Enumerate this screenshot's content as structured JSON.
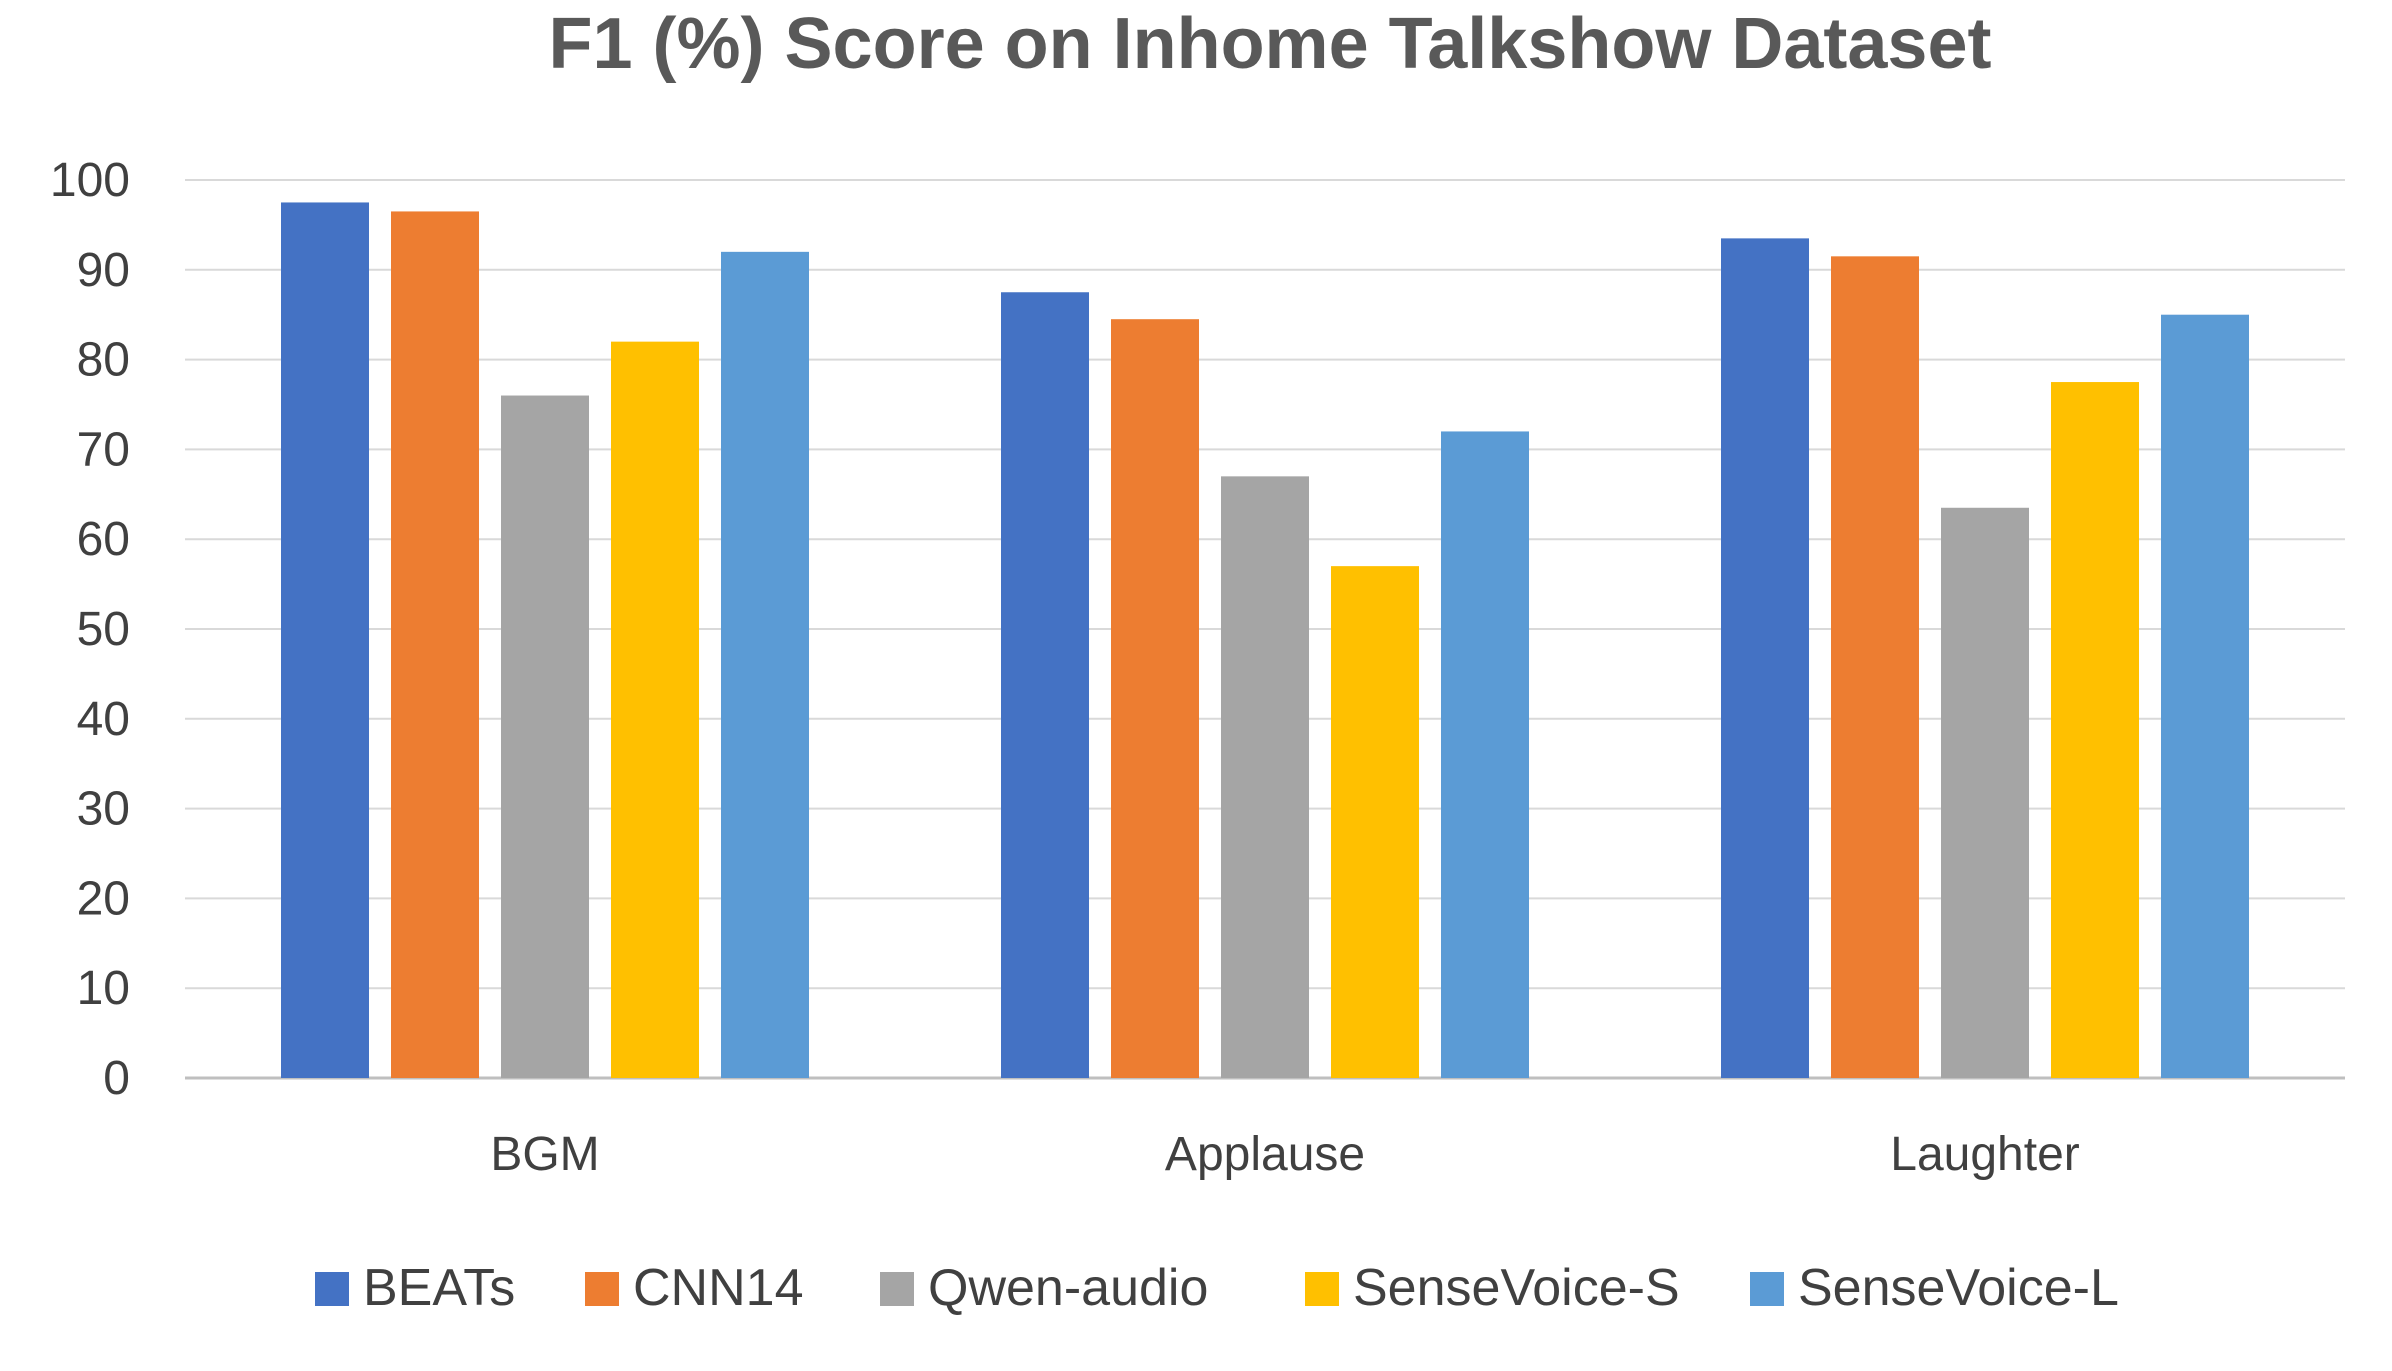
{
  "chart_data": {
    "type": "bar",
    "title": "F1 (%) Score on Inhome Talkshow Dataset",
    "xlabel": "",
    "ylabel": "",
    "categories": [
      "BGM",
      "Applause",
      "Laughter"
    ],
    "ylim": [
      0,
      100
    ],
    "yticks": [
      0,
      10,
      20,
      30,
      40,
      50,
      60,
      70,
      80,
      90,
      100
    ],
    "grid": true,
    "legend_position": "bottom",
    "series": [
      {
        "name": "BEATs",
        "color": "#4472C4",
        "values": [
          97.5,
          87.5,
          93.5
        ]
      },
      {
        "name": "CNN14",
        "color": "#ED7D31",
        "values": [
          96.5,
          84.5,
          91.5
        ]
      },
      {
        "name": "Qwen-audio",
        "color": "#A5A5A5",
        "values": [
          76,
          67,
          63.5
        ]
      },
      {
        "name": "SenseVoice-S",
        "color": "#FFC000",
        "values": [
          82,
          57,
          77.5
        ]
      },
      {
        "name": "SenseVoice-L",
        "color": "#5B9BD5",
        "values": [
          92,
          72,
          85
        ]
      }
    ]
  }
}
